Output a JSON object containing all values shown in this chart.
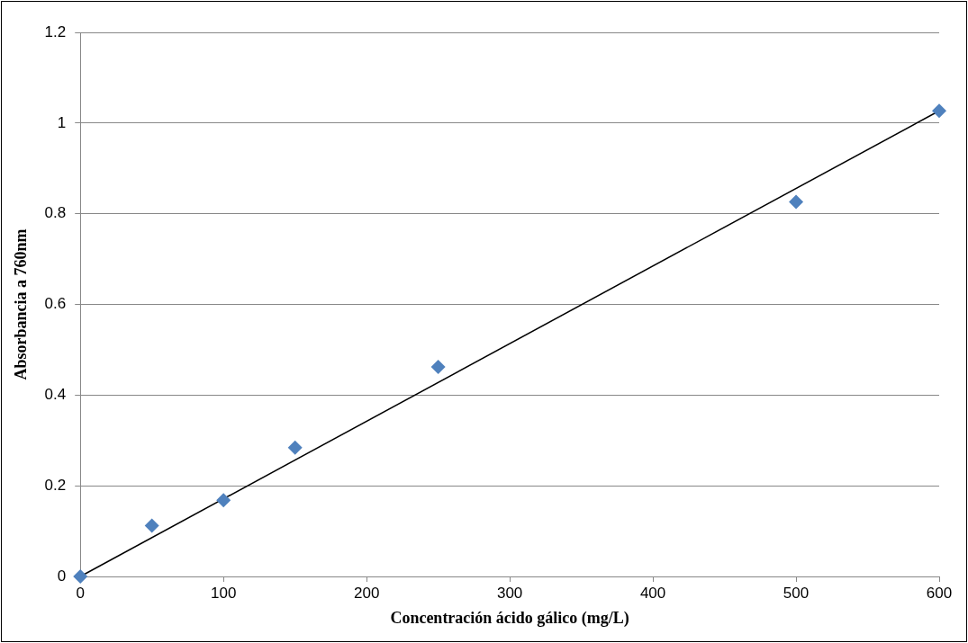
{
  "chart_data": {
    "type": "scatter",
    "xlabel": "Concentración ácido gálico (mg/L)",
    "ylabel": "Absorbancia a 760nm",
    "series": [
      {
        "color": "#4f81bd",
        "x": [
          0,
          50,
          100,
          150,
          250,
          500,
          600
        ],
        "values": [
          0,
          0.112,
          0.168,
          0.284,
          0.462,
          0.826,
          1.027
        ],
        "marker": "diamond"
      },
      {
        "type": "line",
        "color": "#000000",
        "x": [
          0,
          600
        ],
        "values": [
          0,
          1.027
        ],
        "marker": "none"
      }
    ],
    "xlim": [
      0,
      600
    ],
    "xticks": [
      0,
      100,
      200,
      300,
      400,
      500,
      600
    ],
    "ylim": [
      0,
      1.2
    ],
    "yticks": [
      0,
      0.2,
      0.4,
      0.6,
      0.8,
      1,
      1.2
    ],
    "grid": "y",
    "legend": false
  }
}
